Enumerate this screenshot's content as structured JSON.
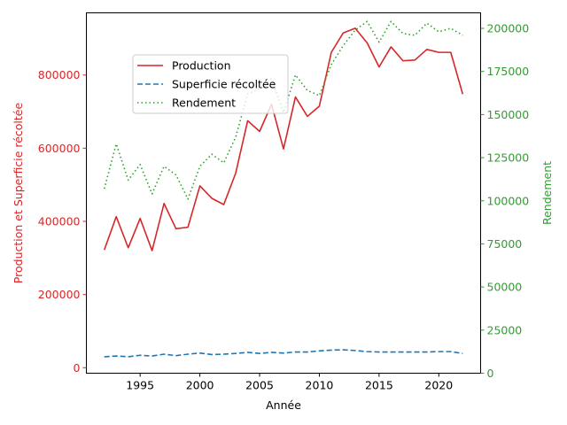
{
  "chart_data": {
    "type": "line",
    "xlabel": "Année",
    "ylabel_left": "Production et Superficie récoltée",
    "ylabel_right": "Rendement",
    "x": [
      1992,
      1993,
      1994,
      1995,
      1996,
      1997,
      1998,
      1999,
      2000,
      2001,
      2002,
      2003,
      2004,
      2005,
      2006,
      2007,
      2008,
      2009,
      2010,
      2011,
      2012,
      2013,
      2014,
      2015,
      2016,
      2017,
      2018,
      2019,
      2020,
      2021,
      2022
    ],
    "xlim": [
      1990.5,
      2023.5
    ],
    "ylim_left": [
      -15000,
      970000
    ],
    "ylim_right": [
      0,
      209000
    ],
    "x_ticks": [
      1995,
      2000,
      2005,
      2010,
      2015,
      2020
    ],
    "y_ticks_left": [
      0,
      200000,
      400000,
      600000,
      800000
    ],
    "y_ticks_right": [
      0,
      25000,
      50000,
      75000,
      100000,
      125000,
      150000,
      175000,
      200000
    ],
    "grid": false,
    "legend_position": "upper-left-center",
    "colors": {
      "left_axis": "#d62728",
      "right_axis": "#2ca02c"
    },
    "series": [
      {
        "name": "Production",
        "axis": "left",
        "color": "#d62728",
        "style": "solid",
        "values": [
          322000,
          413000,
          328000,
          408000,
          320000,
          449000,
          380000,
          384000,
          497000,
          463000,
          446000,
          532000,
          675000,
          646000,
          720000,
          598000,
          740000,
          687000,
          715000,
          862000,
          915000,
          928000,
          888000,
          822000,
          877000,
          839000,
          841000,
          870000,
          862000,
          862000,
          748000
        ]
      },
      {
        "name": "Superficie récoltée",
        "axis": "left",
        "color": "#1f77b4",
        "style": "dashed",
        "values": [
          30000,
          32000,
          30000,
          34000,
          32000,
          37000,
          33000,
          37000,
          40000,
          36000,
          37000,
          39000,
          42000,
          39000,
          42000,
          40000,
          43000,
          43000,
          46000,
          48000,
          49000,
          47000,
          44000,
          43000,
          43000,
          43000,
          43000,
          43000,
          44000,
          44000,
          39000
        ]
      },
      {
        "name": "Rendement",
        "axis": "right",
        "color": "#2ca02c",
        "style": "dotted",
        "values": [
          107000,
          133000,
          112000,
          121000,
          104000,
          120000,
          115000,
          101000,
          120000,
          127000,
          122000,
          137000,
          162000,
          165000,
          171000,
          151000,
          173000,
          164000,
          161000,
          179000,
          190000,
          199000,
          204000,
          192000,
          204000,
          197000,
          196000,
          203000,
          198000,
          200000,
          196000
        ]
      }
    ]
  }
}
